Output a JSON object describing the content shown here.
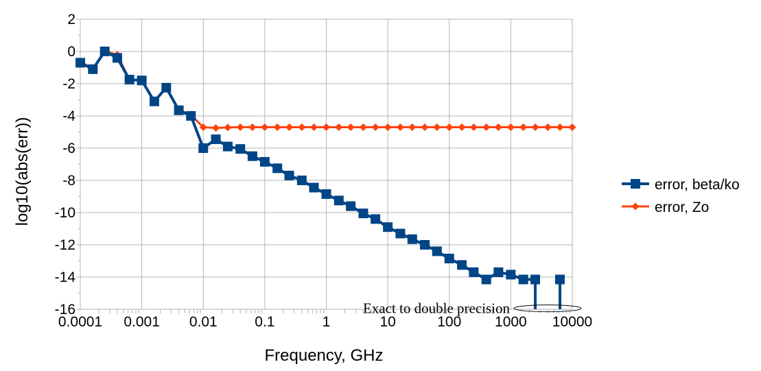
{
  "chart_data": {
    "type": "line",
    "x_scale": "log",
    "xlabel": "Frequency, GHz",
    "ylabel": "log10(abs(err))",
    "xlim": [
      0.0001,
      10000
    ],
    "ylim": [
      -16,
      2
    ],
    "x_ticks": [
      "0.0001",
      "0.001",
      "0.01",
      "0.1",
      "1",
      "10",
      "100",
      "1000",
      "10000"
    ],
    "y_ticks": [
      "2",
      "0",
      "-2",
      "-4",
      "-6",
      "-8",
      "-10",
      "-12",
      "-14",
      "-16"
    ],
    "grid": true,
    "legend_position": "right",
    "series": [
      {
        "name": "error, beta/ko",
        "color": "#004586",
        "marker": "square",
        "x": [
          0.0001,
          0.00016,
          0.00025,
          0.0004,
          0.00063,
          0.001,
          0.0016,
          0.0025,
          0.004,
          0.0063,
          0.01,
          0.016,
          0.025,
          0.04,
          0.063,
          0.1,
          0.16,
          0.25,
          0.4,
          0.63,
          1,
          1.6,
          2.5,
          4,
          6.3,
          10,
          16,
          25,
          40,
          63,
          100,
          160,
          250,
          400,
          630,
          1000,
          1600,
          2500,
          4000,
          6300
        ],
        "y": [
          -0.7,
          -1.1,
          0.0,
          -0.4,
          -1.75,
          -1.8,
          -3.1,
          -2.25,
          -3.65,
          -4.0,
          -6.0,
          -5.45,
          -5.9,
          -6.05,
          -6.5,
          -6.85,
          -7.25,
          -7.7,
          -8.0,
          -8.45,
          -8.85,
          -9.25,
          -9.6,
          -10.05,
          -10.4,
          -10.9,
          -11.3,
          -11.65,
          -12.0,
          -12.4,
          -12.85,
          -13.25,
          -13.7,
          -14.15,
          -13.7,
          -13.85,
          -14.15,
          -14.15,
          null,
          -14.15
        ]
      },
      {
        "name": "error, Zo",
        "color": "#ff420e",
        "marker": "diamond",
        "x": [
          0.0001,
          0.00016,
          0.00025,
          0.0004,
          0.00063,
          0.001,
          0.0016,
          0.0025,
          0.004,
          0.0063,
          0.01,
          0.016,
          0.025,
          0.04,
          0.063,
          0.1,
          0.16,
          0.25,
          0.4,
          0.63,
          1,
          1.6,
          2.5,
          4,
          6.3,
          10,
          16,
          25,
          40,
          63,
          100,
          160,
          250,
          400,
          630,
          1000,
          1600,
          2500,
          4000,
          6300,
          10000
        ],
        "y": [
          -0.65,
          -1.05,
          0.0,
          -0.2,
          -1.75,
          -1.8,
          -3.1,
          -2.25,
          -3.6,
          -3.95,
          -4.7,
          -4.75,
          -4.72,
          -4.7,
          -4.7,
          -4.7,
          -4.7,
          -4.7,
          -4.7,
          -4.7,
          -4.7,
          -4.7,
          -4.7,
          -4.7,
          -4.7,
          -4.7,
          -4.7,
          -4.7,
          -4.7,
          -4.7,
          -4.7,
          -4.7,
          -4.7,
          -4.7,
          -4.7,
          -4.7,
          -4.7,
          -4.7,
          -4.7,
          -4.7,
          -4.7
        ]
      }
    ],
    "drop_lines_at_x": [
      2500,
      6300
    ],
    "annotation": {
      "text": "Exact to double precision",
      "target_x": [
        2500,
        6300
      ],
      "target_y": -15.9
    }
  }
}
